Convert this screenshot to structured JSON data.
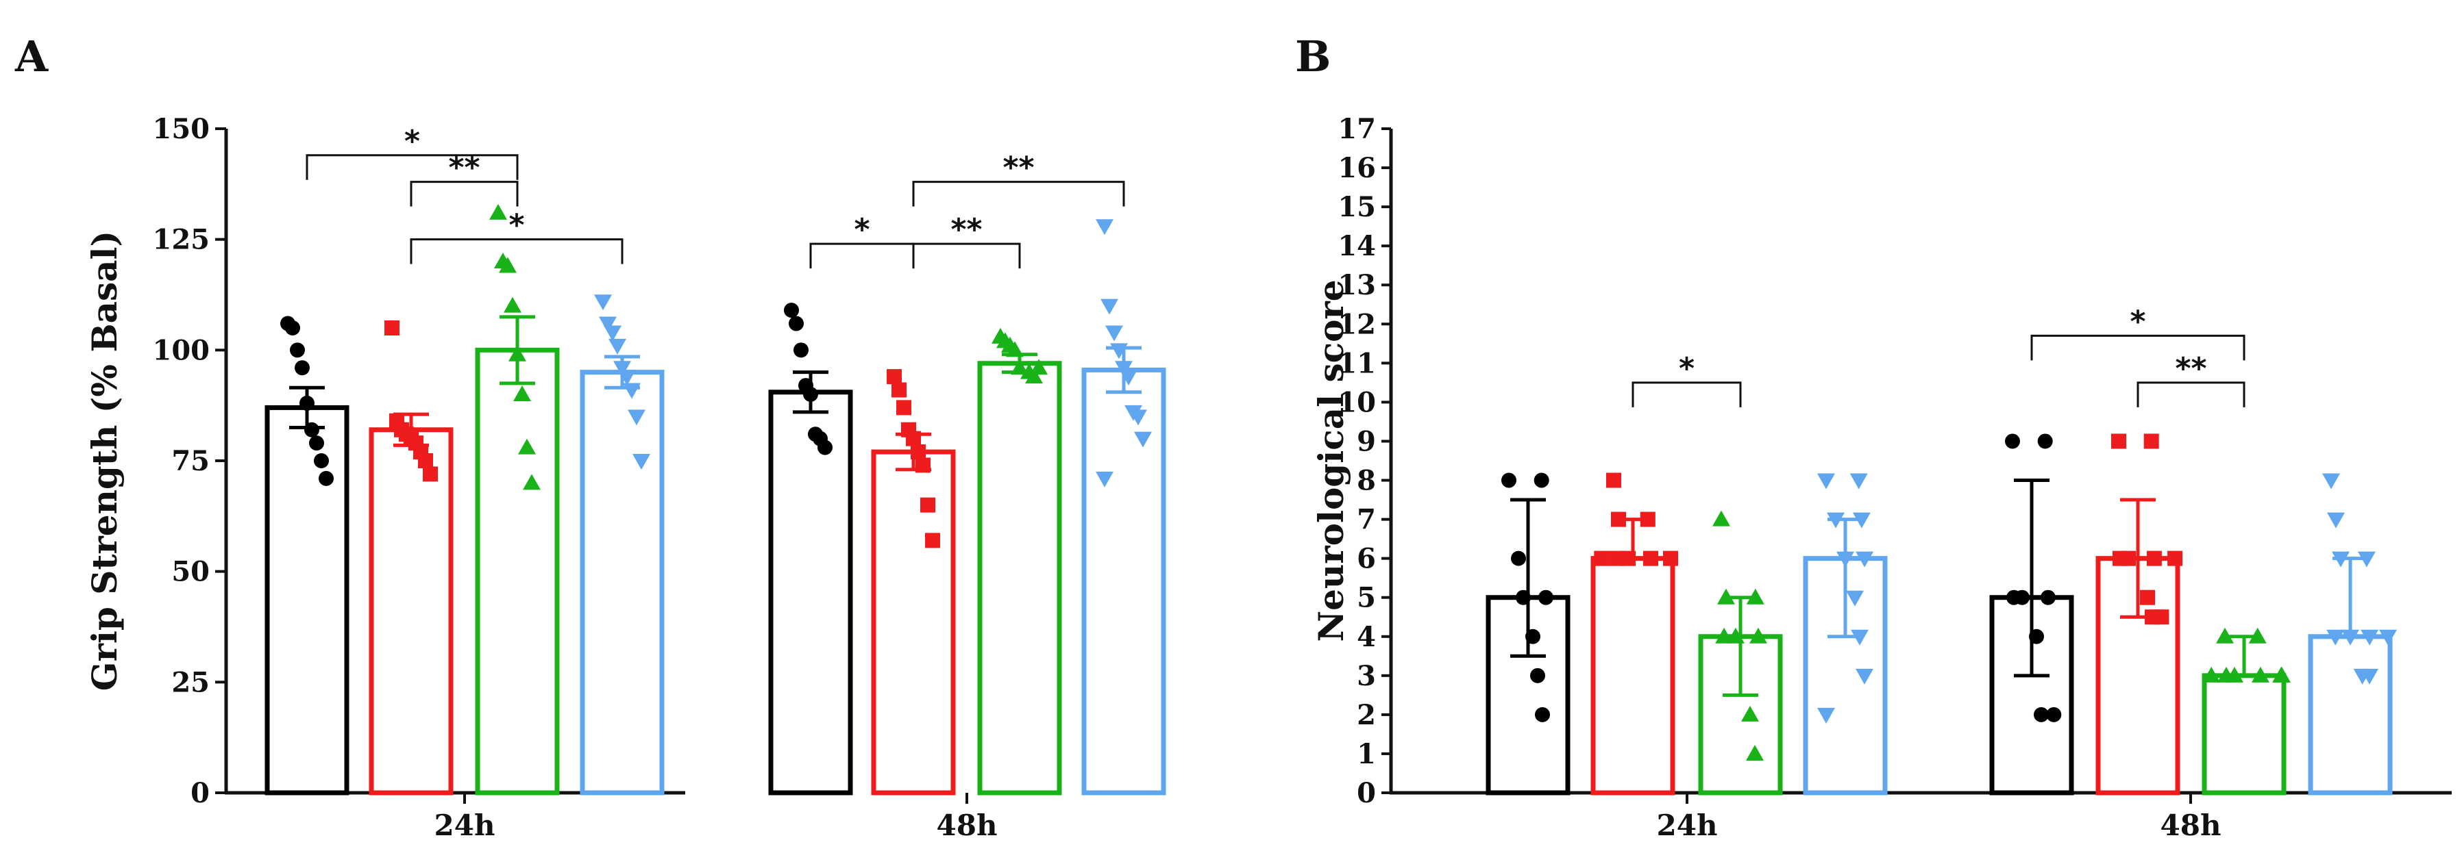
{
  "colors": {
    "group1": "#000000",
    "group2": "#ee1c1c",
    "group3": "#19b319",
    "group4": "#5fa6ef",
    "axis": "#111111"
  },
  "chart_data": [
    {
      "panel": "A",
      "type": "bar",
      "categories": [
        "24h",
        "48h"
      ],
      "ylabel": "Grip Strength (%  Basal)",
      "ylim": [
        0,
        150
      ],
      "yticks": [
        0,
        25,
        50,
        75,
        100,
        125,
        150
      ],
      "error_bars": "SEM",
      "series": [
        {
          "color": "group1",
          "marker": "circle",
          "means": [
            87,
            90.5
          ],
          "errors": [
            4.5,
            4.5
          ],
          "points": [
            [
              106,
              105,
              100,
              96,
              88,
              82,
              79,
              75,
              71
            ],
            [
              109,
              106,
              100,
              92,
              90,
              81,
              80,
              78
            ]
          ]
        },
        {
          "color": "group2",
          "marker": "square",
          "means": [
            82,
            77
          ],
          "errors": [
            3.5,
            4
          ],
          "points": [
            [
              105,
              84,
              82,
              81,
              80,
              79,
              77,
              75,
              72
            ],
            [
              94,
              91,
              87,
              82,
              80,
              77,
              74,
              65,
              57
            ]
          ]
        },
        {
          "color": "group3",
          "marker": "triangle-up",
          "means": [
            100,
            97
          ],
          "errors": [
            7.5,
            2
          ],
          "points": [
            [
              131,
              120,
              119,
              110,
              99,
              90,
              78,
              70
            ],
            [
              103,
              102,
              101,
              100,
              96,
              96,
              95,
              94
            ]
          ]
        },
        {
          "color": "group4",
          "marker": "triangle-down",
          "means": [
            95,
            95.5
          ],
          "errors": [
            3.5,
            5
          ],
          "points": [
            [
              111,
              106,
              104,
              101,
              96,
              94,
              91,
              85,
              75
            ],
            [
              128,
              110,
              104,
              100,
              96,
              94,
              86,
              85,
              80,
              71
            ]
          ]
        }
      ],
      "annotations": [
        {
          "cat": 0,
          "from": 0,
          "to": 2,
          "label": "*",
          "y": 144
        },
        {
          "cat": 0,
          "from": 1,
          "to": 2,
          "label": "**",
          "y": 138
        },
        {
          "cat": 0,
          "from": 1,
          "to": 3,
          "label": "*",
          "y": 125
        },
        {
          "cat": 1,
          "from": 0,
          "to": 1,
          "label": "*",
          "y": 124
        },
        {
          "cat": 1,
          "from": 1,
          "to": 2,
          "label": "**",
          "y": 124
        },
        {
          "cat": 1,
          "from": 1,
          "to": 3,
          "label": "**",
          "y": 138
        }
      ]
    },
    {
      "panel": "B",
      "type": "bar",
      "categories": [
        "24h",
        "48h"
      ],
      "ylabel": "Neurological score",
      "ylim": [
        0,
        17
      ],
      "yticks": [
        0,
        1,
        2,
        3,
        4,
        5,
        6,
        7,
        8,
        9,
        10,
        11,
        12,
        13,
        14,
        15,
        16,
        17
      ],
      "error_bars": "interquartile range",
      "series": [
        {
          "color": "group1",
          "marker": "circle",
          "medians": [
            5,
            5
          ],
          "lower": [
            3.5,
            3
          ],
          "upper": [
            7.5,
            8
          ],
          "points": [
            [
              8,
              8,
              6,
              5,
              5,
              4,
              3,
              2
            ],
            [
              9,
              9,
              5,
              5,
              5,
              4,
              2,
              2
            ]
          ]
        },
        {
          "color": "group2",
          "marker": "square",
          "medians": [
            6,
            6
          ],
          "lower": [
            6,
            4.5
          ],
          "upper": [
            7,
            7.5
          ],
          "points": [
            [
              8,
              7,
              7,
              6,
              6,
              6,
              6,
              6
            ],
            [
              9,
              9,
              6,
              6,
              6,
              6,
              5,
              4.5,
              4.5
            ]
          ]
        },
        {
          "color": "group3",
          "marker": "triangle-up",
          "medians": [
            4,
            3
          ],
          "lower": [
            2.5,
            3
          ],
          "upper": [
            5,
            4
          ],
          "points": [
            [
              7,
              5,
              5,
              4,
              4,
              4,
              2,
              1
            ],
            [
              4,
              4,
              3,
              3,
              3,
              3,
              3,
              3
            ]
          ]
        },
        {
          "color": "group4",
          "marker": "triangle-down",
          "medians": [
            6,
            4
          ],
          "lower": [
            4,
            4
          ],
          "upper": [
            7,
            6
          ],
          "points": [
            [
              8,
              8,
              7,
              7,
              6,
              6,
              5,
              4,
              3,
              2
            ],
            [
              8,
              7,
              6,
              6,
              4,
              4,
              4,
              4,
              3,
              3
            ]
          ]
        }
      ],
      "annotations": [
        {
          "cat": 0,
          "from": 1,
          "to": 2,
          "label": "*",
          "y": 10.5
        },
        {
          "cat": 1,
          "from": 0,
          "to": 2,
          "label": "*",
          "y": 11.7
        },
        {
          "cat": 1,
          "from": 1,
          "to": 2,
          "label": "**",
          "y": 10.5
        }
      ]
    }
  ]
}
